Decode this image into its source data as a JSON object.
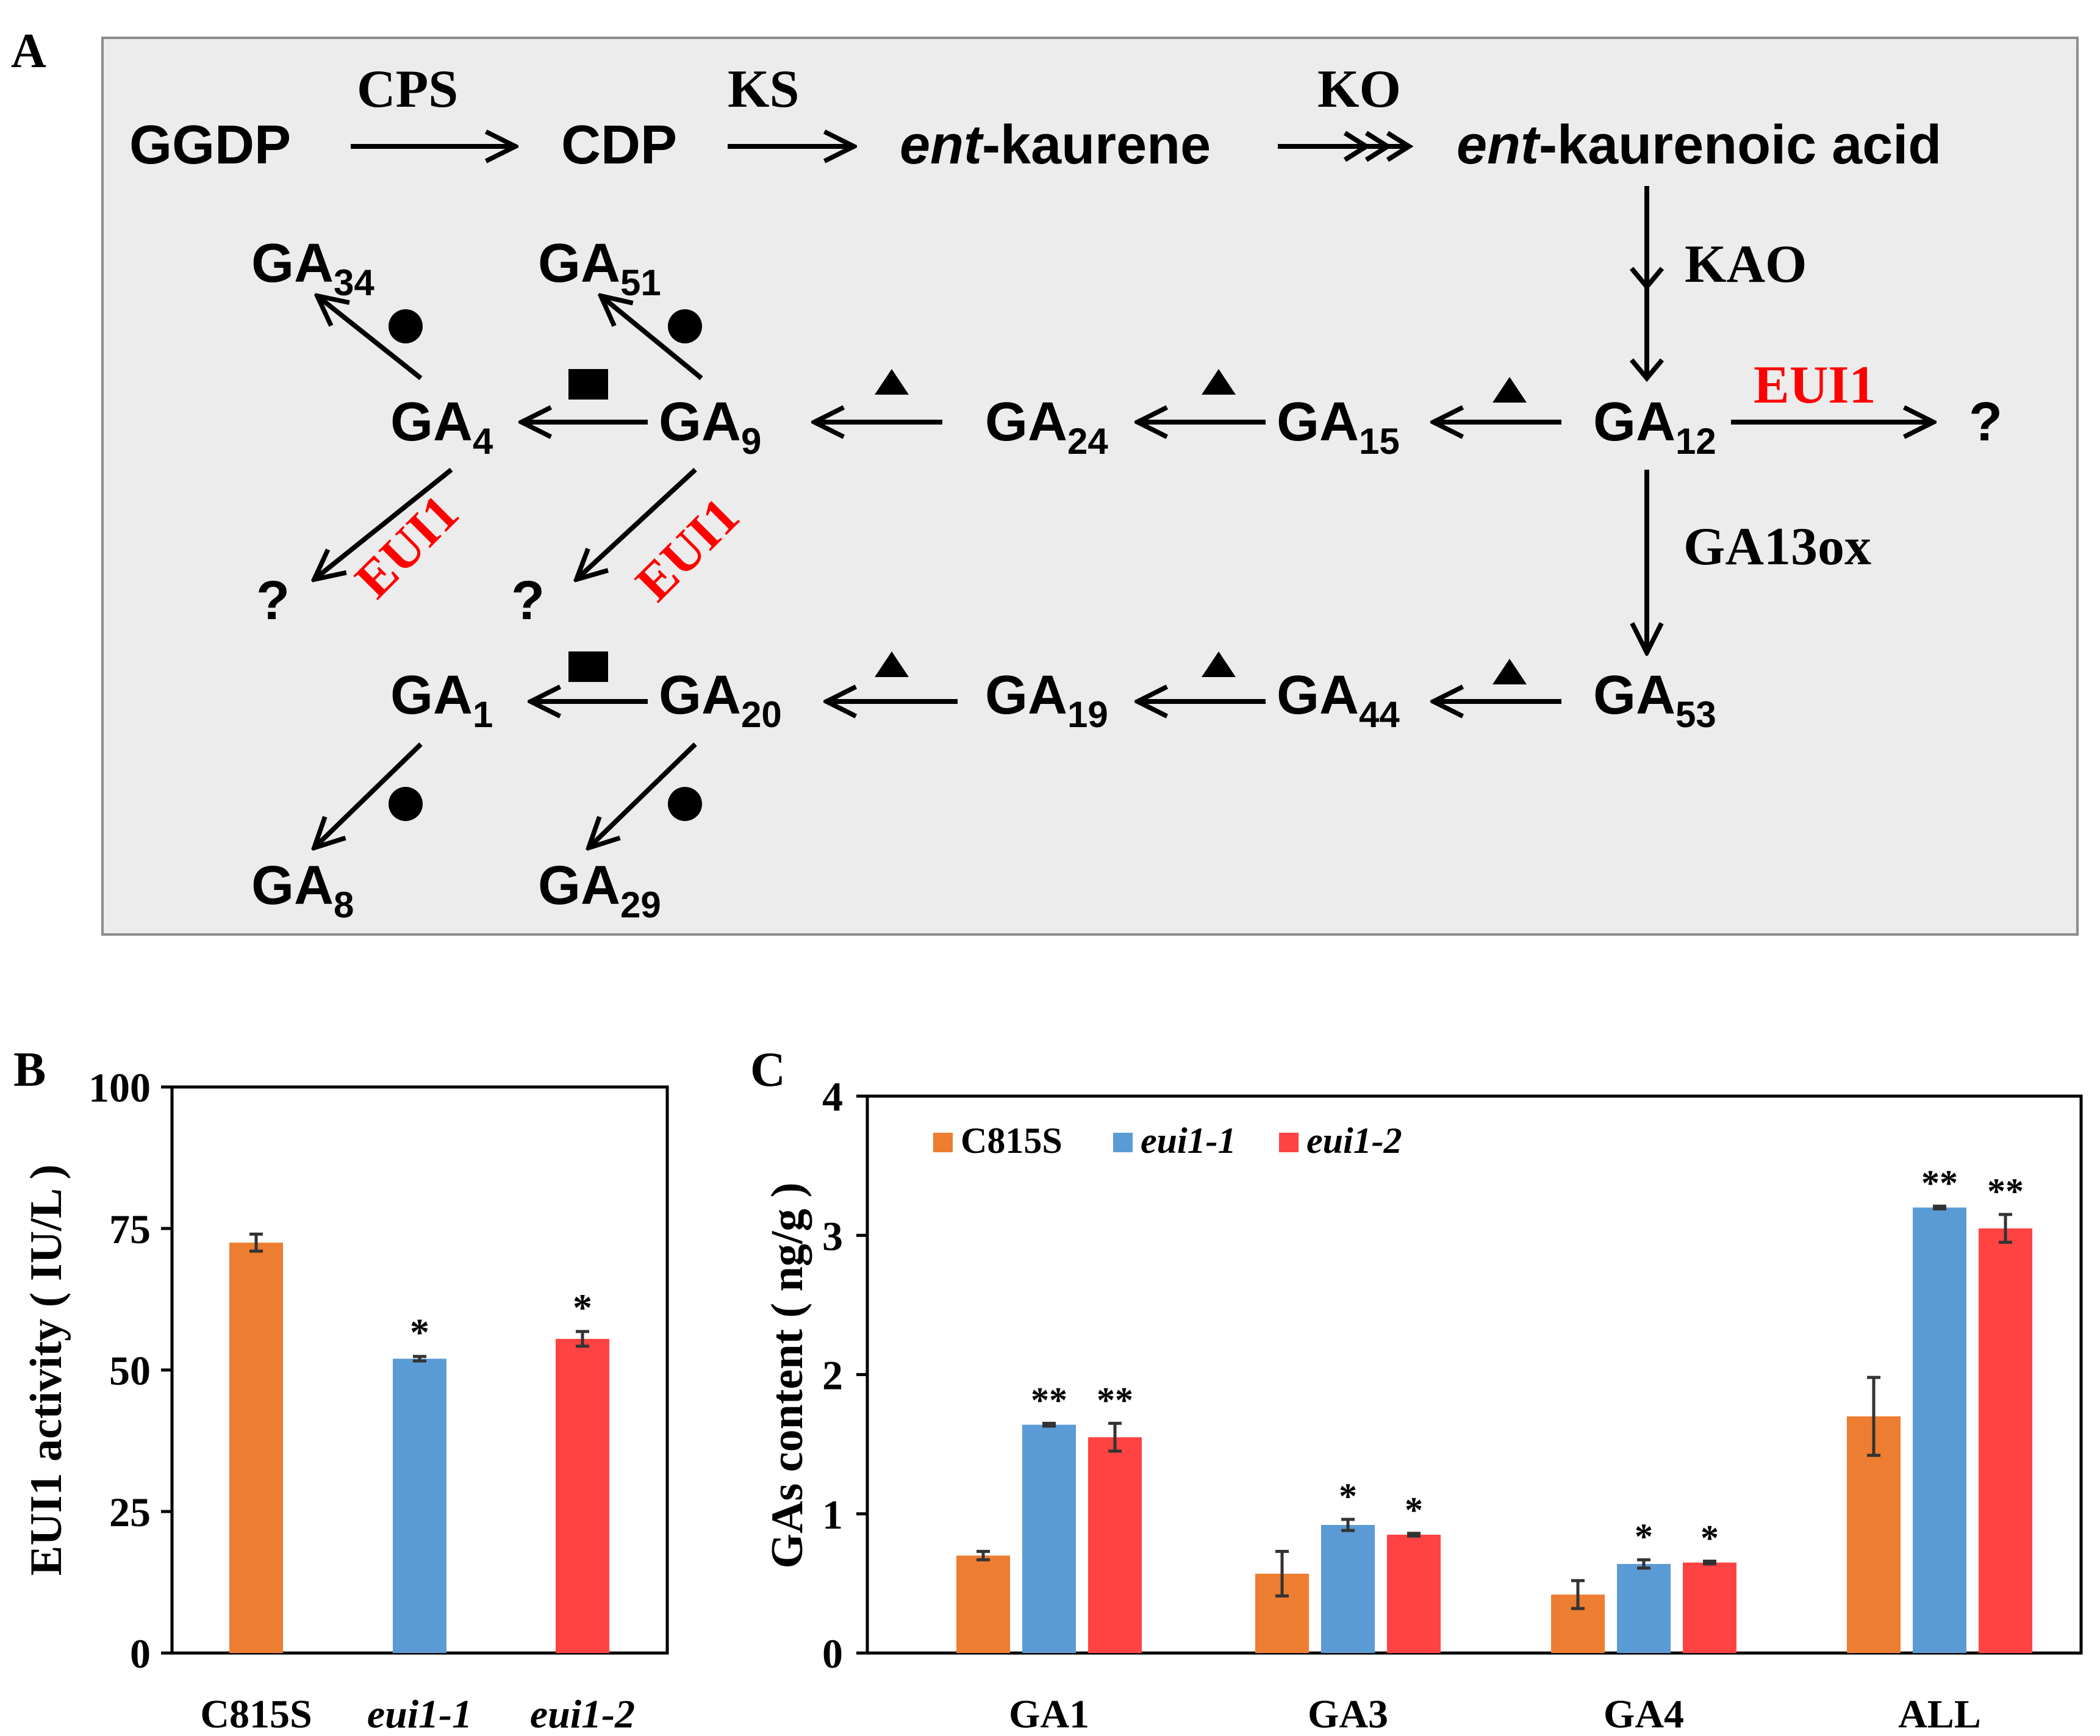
{
  "panel_a": {
    "label": "A",
    "colors": {
      "background": "#ececec",
      "border": "#8c8c8c",
      "highlight": "#ff0000",
      "text": "#000000"
    },
    "nodes": {
      "ggdp": {
        "base": "GGDP",
        "sub": ""
      },
      "cdp": {
        "base": "CDP",
        "sub": ""
      },
      "kaurene": {
        "prefix": "ent",
        "rest": "-kaurene"
      },
      "kaurenoic": {
        "prefix": "ent",
        "rest": "-kaurenoic acid"
      },
      "ga34": {
        "base": "GA",
        "sub": "34"
      },
      "ga51": {
        "base": "GA",
        "sub": "51"
      },
      "ga4": {
        "base": "GA",
        "sub": "4"
      },
      "ga9": {
        "base": "GA",
        "sub": "9"
      },
      "ga24": {
        "base": "GA",
        "sub": "24"
      },
      "ga15": {
        "base": "GA",
        "sub": "15"
      },
      "ga12": {
        "base": "GA",
        "sub": "12"
      },
      "ga1": {
        "base": "GA",
        "sub": "1"
      },
      "ga20": {
        "base": "GA",
        "sub": "20"
      },
      "ga19": {
        "base": "GA",
        "sub": "19"
      },
      "ga44": {
        "base": "GA",
        "sub": "44"
      },
      "ga53": {
        "base": "GA",
        "sub": "53"
      },
      "ga8": {
        "base": "GA",
        "sub": "8"
      },
      "ga29": {
        "base": "GA",
        "sub": "29"
      }
    },
    "enzymes": {
      "cps": "CPS",
      "ks": "KS",
      "ko": "KO",
      "kao": "KAO",
      "ga13ox": "GA13ox",
      "eui1": "EUI1"
    },
    "unknown_product": "?"
  },
  "panel_b": {
    "label": "B",
    "chart_data": {
      "type": "bar",
      "categories": [
        "C815S",
        "eui1-1",
        "eui1-2"
      ],
      "values": [
        72.5,
        52,
        55.5
      ],
      "errors": [
        1.5,
        0.4,
        1.3
      ],
      "significance": [
        "",
        "*",
        "*"
      ],
      "colors": [
        "#ed7d31",
        "#5b9bd5",
        "#ff4343"
      ],
      "title": "",
      "xlabel": "",
      "ylabel": "EUI1 activity ( IU/L )",
      "ylim": [
        0,
        100
      ],
      "yticks": [
        "0",
        "25",
        "50",
        "75",
        "100"
      ]
    }
  },
  "panel_c": {
    "label": "C",
    "chart_data": {
      "type": "bar",
      "categories": [
        "GA1",
        "GA3",
        "GA4",
        "ALL"
      ],
      "series": [
        {
          "name": "C815S",
          "color": "#ed7d31",
          "values": [
            0.7,
            0.57,
            0.42,
            1.7
          ],
          "errors": [
            0.03,
            0.16,
            0.1,
            0.28
          ],
          "significance": [
            "",
            "",
            "",
            ""
          ]
        },
        {
          "name": "eui1-1",
          "color": "#5b9bd5",
          "values": [
            1.64,
            0.92,
            0.64,
            3.2
          ],
          "errors": [
            0.01,
            0.04,
            0.03,
            0.01
          ],
          "significance": [
            "**",
            "*",
            "*",
            "**"
          ]
        },
        {
          "name": "eui1-2",
          "color": "#ff4343",
          "values": [
            1.55,
            0.85,
            0.65,
            3.05
          ],
          "errors": [
            0.1,
            0.01,
            0.01,
            0.1
          ],
          "significance": [
            "**",
            "*",
            "*",
            "**"
          ]
        }
      ],
      "title": "",
      "xlabel": "",
      "ylabel": "GAs content ( ng/g )",
      "ylim": [
        0,
        4
      ],
      "yticks": [
        "0",
        "1",
        "2",
        "3",
        "4"
      ],
      "legend_position": "top-left"
    }
  }
}
